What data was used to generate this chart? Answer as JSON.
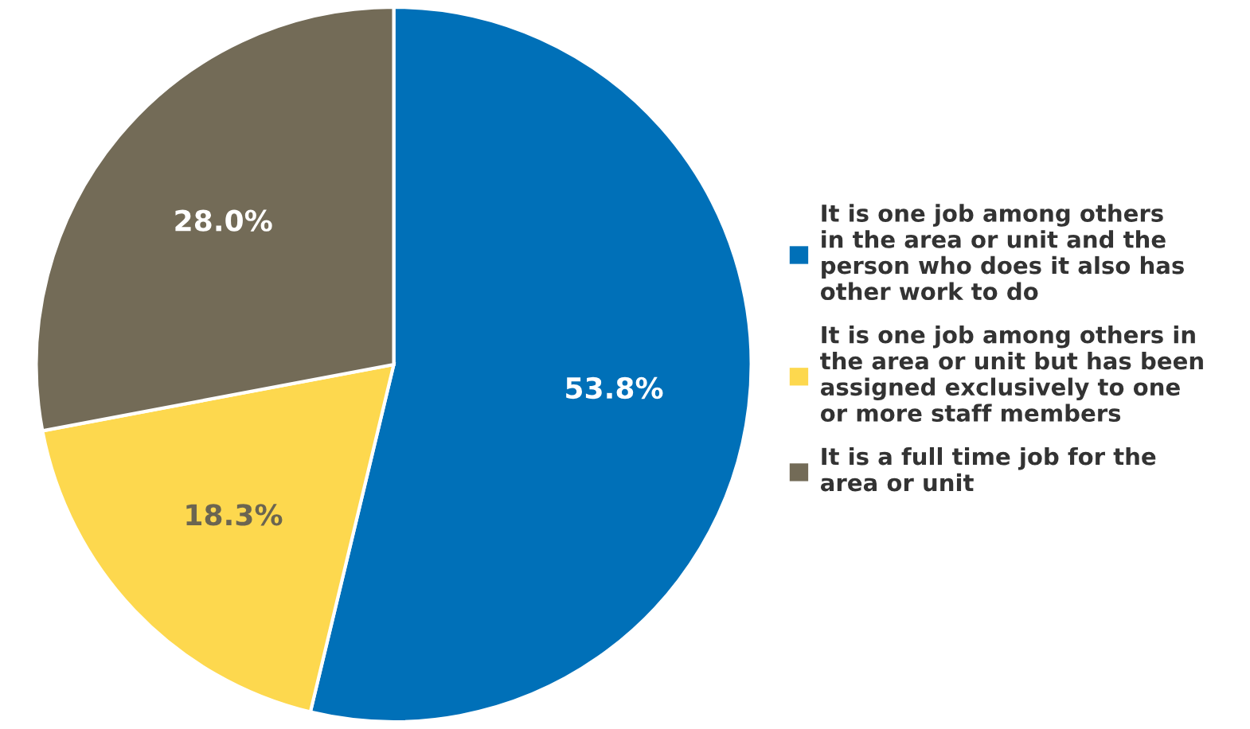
{
  "chart_data": {
    "type": "pie",
    "categories": [
      "It is one job among others\nin the area or unit and the\nperson who does it also has\nother work to do",
      "It is one job among others in\nthe area or unit but has been\nassigned exclusively to one\nor more staff members",
      "It is a full time job for the\narea or unit"
    ],
    "values": [
      53.8,
      18.3,
      28.0
    ],
    "colors": [
      "#0070b8",
      "#fdd84e",
      "#736b57"
    ],
    "value_labels": [
      "53.8%",
      "18.3%",
      "28.0%"
    ],
    "legend": "right"
  }
}
